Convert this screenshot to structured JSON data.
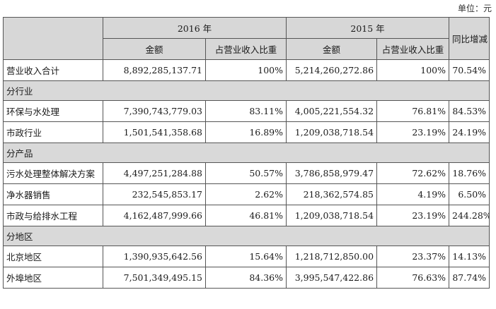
{
  "unit_label": "单位：元",
  "headers": {
    "year_2016": "2016 年",
    "year_2015": "2015 年",
    "yoy": "同比增减",
    "amount": "金额",
    "ratio": "占营业收入比重"
  },
  "total_row": {
    "label": "营业收入合计",
    "amt_2016": "8,892,285,137.71",
    "pct_2016": "100%",
    "amt_2015": "5,214,260,272.86",
    "pct_2015": "100%",
    "yoy": "70.54%"
  },
  "sections": [
    {
      "title": "分行业",
      "rows": [
        {
          "label": "环保与水处理",
          "amt_2016": "7,390,743,779.03",
          "pct_2016": "83.11%",
          "amt_2015": "4,005,221,554.32",
          "pct_2015": "76.81%",
          "yoy": "84.53%"
        },
        {
          "label": "市政行业",
          "amt_2016": "1,501,541,358.68",
          "pct_2016": "16.89%",
          "amt_2015": "1,209,038,718.54",
          "pct_2015": "23.19%",
          "yoy": "24.19%"
        }
      ]
    },
    {
      "title": "分产品",
      "rows": [
        {
          "label": "污水处理整体解决方案",
          "amt_2016": "4,497,251,284.88",
          "pct_2016": "50.57%",
          "amt_2015": "3,786,858,979.47",
          "pct_2015": "72.62%",
          "yoy": "18.76%"
        },
        {
          "label": "净水器销售",
          "amt_2016": "232,545,853.17",
          "pct_2016": "2.62%",
          "amt_2015": "218,362,574.85",
          "pct_2015": "4.19%",
          "yoy": "6.50%"
        },
        {
          "label": "市政与给排水工程",
          "amt_2016": "4,162,487,999.66",
          "pct_2016": "46.81%",
          "amt_2015": "1,209,038,718.54",
          "pct_2015": "23.19%",
          "yoy": "244.28%"
        }
      ]
    },
    {
      "title": "分地区",
      "rows": [
        {
          "label": "北京地区",
          "amt_2016": "1,390,935,642.56",
          "pct_2016": "15.64%",
          "amt_2015": "1,218,712,850.00",
          "pct_2015": "23.37%",
          "yoy": "14.13%"
        },
        {
          "label": "外埠地区",
          "amt_2016": "7,501,349,495.15",
          "pct_2016": "84.36%",
          "amt_2015": "3,995,547,422.86",
          "pct_2015": "76.63%",
          "yoy": "87.74%"
        }
      ]
    }
  ]
}
